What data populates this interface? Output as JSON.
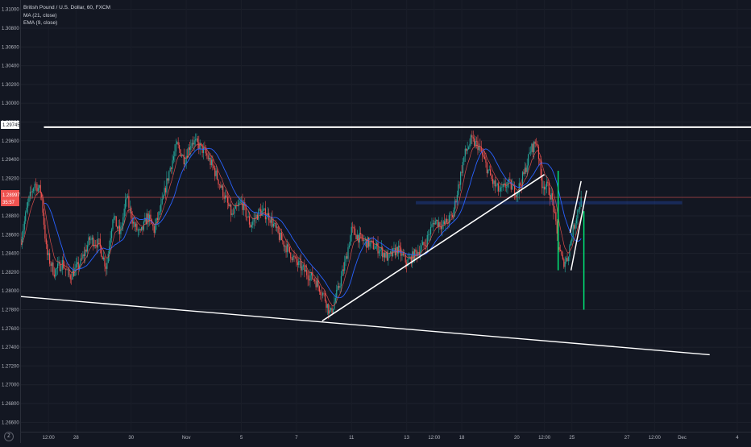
{
  "legend": {
    "symbol": "British Pound / U.S. Dollar, 60, FXCM",
    "ma": "MA (21, close)",
    "ema": "EMA (9, close)"
  },
  "price_tags": {
    "resistance": "1.29745",
    "current": "1.28997",
    "countdown": "35:57"
  },
  "logo_text": "Z",
  "colors": {
    "background": "#131722",
    "bull": "#26a69a",
    "bear": "#ef5350",
    "ma_line": "#2962ff",
    "ema_line": "#ef5350",
    "drawing": "#ffffff",
    "target": "#00e676",
    "current_line": "#ef5350"
  },
  "chart_data": {
    "type": "candlestick",
    "title": "British Pound / U.S. Dollar, 60, FXCM",
    "indicators": [
      "MA (21, close)",
      "EMA (9, close)"
    ],
    "ylim": [
      1.265,
      1.311
    ],
    "y_ticks": [
      "1.31000",
      "1.30800",
      "1.30600",
      "1.30400",
      "1.30200",
      "1.30000",
      "1.29800",
      "1.29600",
      "1.29400",
      "1.29200",
      "1.29000",
      "1.28800",
      "1.28600",
      "1.28400",
      "1.28200",
      "1.28000",
      "1.27800",
      "1.27600",
      "1.27400",
      "1.27200",
      "1.27000",
      "1.26800",
      "1.26600"
    ],
    "x_ticks": [
      {
        "label": "12:00",
        "t": 3
      },
      {
        "label": "28",
        "t": 6
      },
      {
        "label": "30",
        "t": 12
      },
      {
        "label": "Nov",
        "t": 18
      },
      {
        "label": "5",
        "t": 24
      },
      {
        "label": "7",
        "t": 30
      },
      {
        "label": "11",
        "t": 36
      },
      {
        "label": "13",
        "t": 42
      },
      {
        "label": "12:00",
        "t": 45
      },
      {
        "label": "18",
        "t": 48
      },
      {
        "label": "20",
        "t": 54
      },
      {
        "label": "12:00",
        "t": 57
      },
      {
        "label": "25",
        "t": 60
      },
      {
        "label": "27",
        "t": 66
      },
      {
        "label": "12:00",
        "t": 69
      },
      {
        "label": "Dec",
        "t": 72
      },
      {
        "label": "4",
        "t": 78
      }
    ],
    "t_range": [
      0,
      79.5
    ],
    "price_path": [
      [
        0,
        1.2855
      ],
      [
        0.8,
        1.2895
      ],
      [
        1.5,
        1.2915
      ],
      [
        2.2,
        1.2905
      ],
      [
        2.8,
        1.284
      ],
      [
        3.6,
        1.282
      ],
      [
        4.5,
        1.283
      ],
      [
        5.3,
        1.2815
      ],
      [
        6.5,
        1.283
      ],
      [
        7.5,
        1.2855
      ],
      [
        8.5,
        1.285
      ],
      [
        9.3,
        1.2825
      ],
      [
        10.0,
        1.288
      ],
      [
        10.8,
        1.286
      ],
      [
        11.5,
        1.29
      ],
      [
        12.3,
        1.287
      ],
      [
        13.0,
        1.286
      ],
      [
        13.8,
        1.288
      ],
      [
        14.5,
        1.2865
      ],
      [
        15.3,
        1.289
      ],
      [
        16.2,
        1.293
      ],
      [
        17.0,
        1.2955
      ],
      [
        17.8,
        1.294
      ],
      [
        18.6,
        1.296
      ],
      [
        19.4,
        1.2955
      ],
      [
        20.2,
        1.2945
      ],
      [
        21.0,
        1.293
      ],
      [
        22.0,
        1.2905
      ],
      [
        23.0,
        1.288
      ],
      [
        24.0,
        1.2895
      ],
      [
        25.0,
        1.287
      ],
      [
        26.0,
        1.2885
      ],
      [
        27.0,
        1.288
      ],
      [
        28.0,
        1.286
      ],
      [
        29.0,
        1.2845
      ],
      [
        30.0,
        1.283
      ],
      [
        31.0,
        1.282
      ],
      [
        32.0,
        1.2812
      ],
      [
        33.0,
        1.2795
      ],
      [
        33.7,
        1.2775
      ],
      [
        34.5,
        1.28
      ],
      [
        35.3,
        1.283
      ],
      [
        36.0,
        1.2865
      ],
      [
        37.0,
        1.2855
      ],
      [
        38.0,
        1.285
      ],
      [
        39.0,
        1.2845
      ],
      [
        40.0,
        1.2835
      ],
      [
        41.0,
        1.2845
      ],
      [
        42.0,
        1.283
      ],
      [
        43.0,
        1.284
      ],
      [
        44.0,
        1.285
      ],
      [
        45.0,
        1.2875
      ],
      [
        46.0,
        1.287
      ],
      [
        47.0,
        1.288
      ],
      [
        47.6,
        1.291
      ],
      [
        48.3,
        1.2945
      ],
      [
        49.0,
        1.296
      ],
      [
        49.8,
        1.2955
      ],
      [
        50.6,
        1.2935
      ],
      [
        51.4,
        1.2915
      ],
      [
        52.2,
        1.2905
      ],
      [
        53.0,
        1.2915
      ],
      [
        54.0,
        1.2905
      ],
      [
        54.8,
        1.2925
      ],
      [
        55.5,
        1.295
      ],
      [
        56.2,
        1.296
      ],
      [
        56.7,
        1.2915
      ],
      [
        57.4,
        1.291
      ],
      [
        57.9,
        1.2895
      ],
      [
        58.5,
        1.285
      ],
      [
        59.0,
        1.283
      ],
      [
        59.5,
        1.2835
      ],
      [
        60.0,
        1.286
      ],
      [
        60.6,
        1.2885
      ],
      [
        61.0,
        1.2897
      ]
    ],
    "annotations": {
      "resistance": {
        "price": 1.29745,
        "t_from": 2.5,
        "t_to": 79.5
      },
      "lower_trendline": [
        [
          0,
          1.2794
        ],
        [
          75,
          1.2732
        ]
      ],
      "upward_trendline": [
        [
          32.8,
          1.2768
        ],
        [
          57.0,
          1.2924
        ]
      ],
      "rising_channel_upper": [
        [
          59.8,
          1.2862
        ],
        [
          61.0,
          1.2917
        ]
      ],
      "rising_channel_lower": [
        [
          59.9,
          1.2822
        ],
        [
          61.6,
          1.2907
        ]
      ],
      "measure_down": [
        [
          58.5,
          1.2928
        ],
        [
          58.5,
          1.2822
        ]
      ],
      "measure_target": [
        [
          61.3,
          1.2885
        ],
        [
          61.3,
          1.278
        ]
      ],
      "support_zone": {
        "price": 1.2894,
        "t_from": 43,
        "t_to": 72
      }
    }
  }
}
